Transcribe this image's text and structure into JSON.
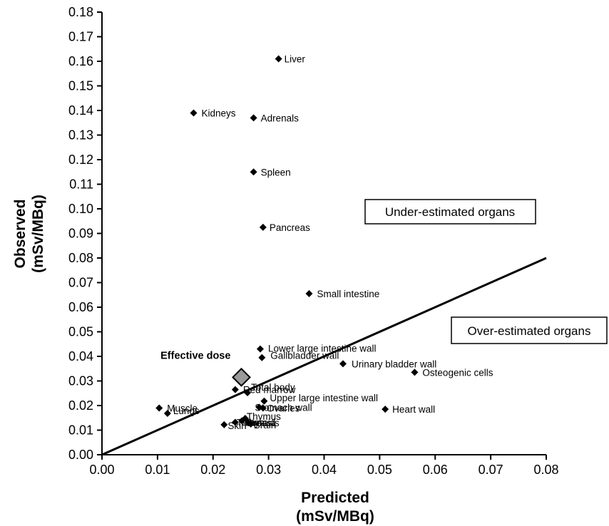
{
  "chart_data": {
    "type": "scatter",
    "xlabel": "Predicted",
    "xlabel_unit": "(mSv/MBq)",
    "ylabel": "Observed",
    "ylabel_unit": "(mSv/MBq)",
    "xlim": [
      0,
      0.08
    ],
    "ylim": [
      0,
      0.18
    ],
    "x_ticks": [
      "0.00",
      "0.01",
      "0.02",
      "0.03",
      "0.04",
      "0.05",
      "0.06",
      "0.07",
      "0.08"
    ],
    "y_ticks": [
      "0.00",
      "0.01",
      "0.02",
      "0.03",
      "0.04",
      "0.05",
      "0.06",
      "0.07",
      "0.08",
      "0.09",
      "0.10",
      "0.11",
      "0.12",
      "0.13",
      "0.14",
      "0.15",
      "0.16",
      "0.17",
      "0.18"
    ],
    "grid": false,
    "reference_line": {
      "x": [
        0,
        0.08
      ],
      "y": [
        0,
        0.08
      ]
    },
    "points": [
      {
        "label": "Liver",
        "x": 0.0318,
        "y": 0.161
      },
      {
        "label": "Kidneys",
        "x": 0.0165,
        "y": 0.139
      },
      {
        "label": "Adrenals",
        "x": 0.0273,
        "y": 0.137
      },
      {
        "label": "Spleen",
        "x": 0.0273,
        "y": 0.115
      },
      {
        "label": "Pancreas",
        "x": 0.029,
        "y": 0.0925
      },
      {
        "label": "Small intestine",
        "x": 0.0373,
        "y": 0.0655
      },
      {
        "label": "Lower large intestine wall",
        "x": 0.0285,
        "y": 0.043
      },
      {
        "label": "Gallbladder wall",
        "x": 0.0288,
        "y": 0.0395
      },
      {
        "label": "Urinary bladder wall",
        "x": 0.0434,
        "y": 0.037
      },
      {
        "label": "Osteogenic cells",
        "x": 0.0563,
        "y": 0.0335
      },
      {
        "label": "Red marrow",
        "x": 0.024,
        "y": 0.0265
      },
      {
        "label": "Total body",
        "x": 0.0262,
        "y": 0.0252
      },
      {
        "label": "Upper large intestine wall",
        "x": 0.0292,
        "y": 0.0218
      },
      {
        "label": "Stomach wall",
        "x": 0.0283,
        "y": 0.0193
      },
      {
        "label": "Ovaries",
        "x": 0.029,
        "y": 0.019
      },
      {
        "label": "Heart wall",
        "x": 0.051,
        "y": 0.0185
      },
      {
        "label": "Muscle",
        "x": 0.0103,
        "y": 0.019
      },
      {
        "label": "Lungs",
        "x": 0.0118,
        "y": 0.0168
      },
      {
        "label": "Thymus",
        "x": 0.0258,
        "y": 0.0148
      },
      {
        "label": "Thyroid",
        "x": 0.0252,
        "y": 0.0138
      },
      {
        "label": "Breasts",
        "x": 0.0263,
        "y": 0.013
      },
      {
        "label": "Brain",
        "x": 0.0268,
        "y": 0.0125
      },
      {
        "label": "Skin",
        "x": 0.022,
        "y": 0.0122
      },
      {
        "label": "Testes",
        "x": 0.024,
        "y": 0.0132
      }
    ],
    "highlight": {
      "label": "Effective dose",
      "x": 0.0251,
      "y": 0.0315
    },
    "annotations": [
      {
        "text": "Under-estimated organs"
      },
      {
        "text": "Over-estimated organs"
      }
    ]
  }
}
